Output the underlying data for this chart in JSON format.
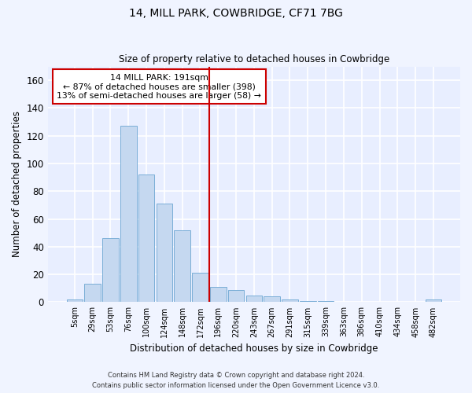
{
  "title": "14, MILL PARK, COWBRIDGE, CF71 7BG",
  "subtitle": "Size of property relative to detached houses in Cowbridge",
  "xlabel": "Distribution of detached houses by size in Cowbridge",
  "ylabel": "Number of detached properties",
  "bar_color": "#c5d8f0",
  "bar_edge_color": "#7aaed6",
  "background_color": "#e8eeff",
  "grid_color": "#ffffff",
  "categories": [
    "5sqm",
    "29sqm",
    "53sqm",
    "76sqm",
    "100sqm",
    "124sqm",
    "148sqm",
    "172sqm",
    "196sqm",
    "220sqm",
    "243sqm",
    "267sqm",
    "291sqm",
    "315sqm",
    "339sqm",
    "363sqm",
    "386sqm",
    "410sqm",
    "434sqm",
    "458sqm",
    "482sqm"
  ],
  "values": [
    2,
    13,
    46,
    127,
    92,
    71,
    52,
    21,
    11,
    9,
    5,
    4,
    2,
    1,
    1,
    0,
    0,
    0,
    0,
    0,
    2
  ],
  "ylim": [
    0,
    170
  ],
  "yticks": [
    0,
    20,
    40,
    60,
    80,
    100,
    120,
    140,
    160
  ],
  "property_line_x": 8.0,
  "property_label": "14 MILL PARK: 191sqm",
  "annotation_line1": "← 87% of detached houses are smaller (398)",
  "annotation_line2": "13% of semi-detached houses are larger (58) →",
  "annotation_box_color": "#cc0000",
  "footer_line1": "Contains HM Land Registry data © Crown copyright and database right 2024.",
  "footer_line2": "Contains public sector information licensed under the Open Government Licence v3.0."
}
